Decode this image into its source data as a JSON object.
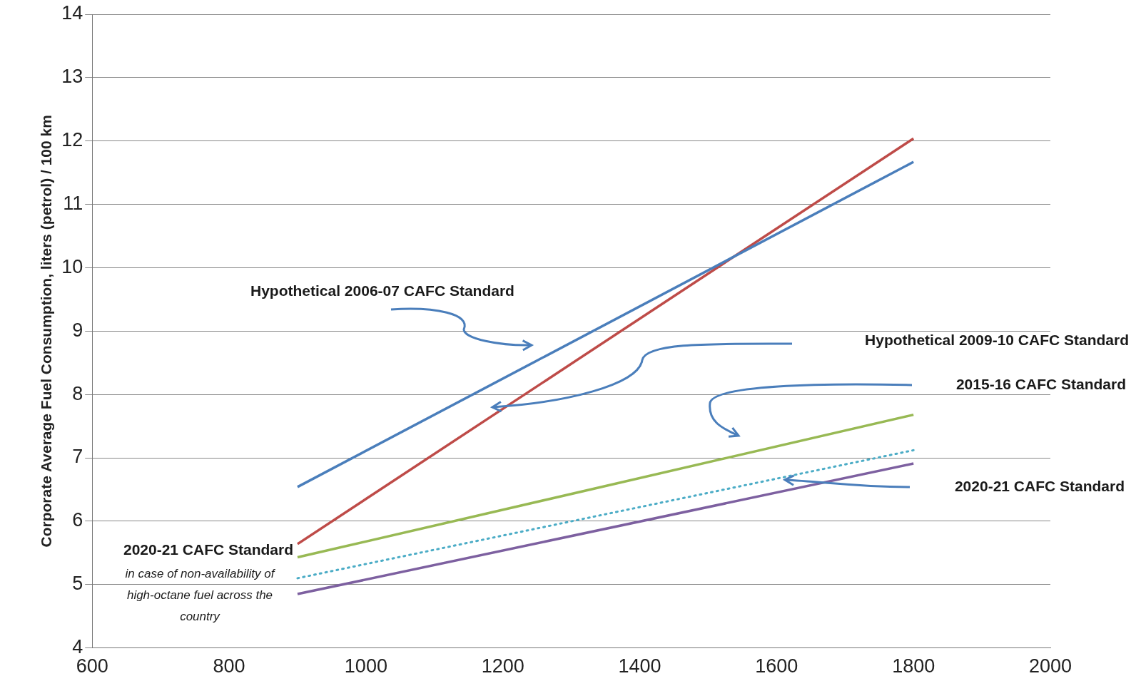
{
  "chart_data": {
    "type": "line",
    "ylabel": "Corporate Average Fuel Consumption, liters (petrol) / 100 km",
    "x": [
      900,
      1800
    ],
    "series": [
      {
        "color": "#4a7ebb",
        "values": [
          6.54,
          11.67
        ]
      },
      {
        "color": "#be4b48",
        "values": [
          5.64,
          12.04
        ]
      },
      {
        "color": "#98b954",
        "values": [
          5.43,
          7.68
        ]
      },
      {
        "color": "#4bacc6",
        "values": [
          5.1,
          7.12
        ],
        "line_style": "dotted"
      },
      {
        "color": "#7d60a0",
        "values": [
          4.85,
          6.91
        ]
      }
    ],
    "xlim": [
      600,
      2000
    ],
    "xticks": [
      600,
      800,
      1000,
      1200,
      1400,
      1600,
      1800,
      2000
    ],
    "ylim": [
      4,
      14
    ],
    "yticks": [
      4,
      5,
      6,
      7,
      8,
      9,
      10,
      11,
      12,
      13,
      14
    ],
    "grid": "y",
    "legend": false,
    "marker": "none",
    "line_style": "solid",
    "annotations": [
      "Hypothetical 2006-07 CAFC Standard",
      "Hypothetical 2009-10 CAFC Standard",
      "2015-16 CAFC Standard",
      "2020-21 CAFC Standard",
      "2020-21 CAFC Standard",
      "in case of non-availability of high-octane fuel across the country"
    ]
  }
}
